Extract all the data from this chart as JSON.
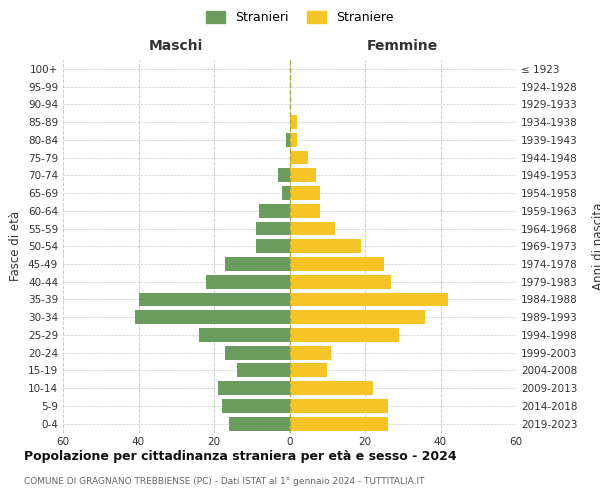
{
  "age_groups": [
    "100+",
    "95-99",
    "90-94",
    "85-89",
    "80-84",
    "75-79",
    "70-74",
    "65-69",
    "60-64",
    "55-59",
    "50-54",
    "45-49",
    "40-44",
    "35-39",
    "30-34",
    "25-29",
    "20-24",
    "15-19",
    "10-14",
    "5-9",
    "0-4"
  ],
  "birth_years": [
    "≤ 1923",
    "1924-1928",
    "1929-1933",
    "1934-1938",
    "1939-1943",
    "1944-1948",
    "1949-1953",
    "1954-1958",
    "1959-1963",
    "1964-1968",
    "1969-1973",
    "1974-1978",
    "1979-1983",
    "1984-1988",
    "1989-1993",
    "1994-1998",
    "1999-2003",
    "2004-2008",
    "2009-2013",
    "2014-2018",
    "2019-2023"
  ],
  "maschi": [
    0,
    0,
    0,
    0,
    1,
    0,
    3,
    2,
    8,
    9,
    9,
    17,
    22,
    40,
    41,
    24,
    17,
    14,
    19,
    18,
    16
  ],
  "femmine": [
    0,
    0,
    0,
    2,
    2,
    5,
    7,
    8,
    8,
    12,
    19,
    25,
    27,
    42,
    36,
    29,
    11,
    10,
    22,
    26,
    26
  ],
  "color_maschi": "#6a9c5f",
  "color_femmine": "#f5c427",
  "title": "Popolazione per cittadinanza straniera per età e sesso - 2024",
  "subtitle": "COMUNE DI GRAGNANO TREBBIENSE (PC) - Dati ISTAT al 1° gennaio 2024 - TUTTITALIA.IT",
  "legend_maschi": "Stranieri",
  "legend_femmine": "Straniere",
  "xlabel_left": "Maschi",
  "xlabel_right": "Femmine",
  "ylabel_left": "Fasce di età",
  "ylabel_right": "Anni di nascita",
  "xlim": 60,
  "background_color": "#ffffff",
  "grid_color": "#cccccc"
}
